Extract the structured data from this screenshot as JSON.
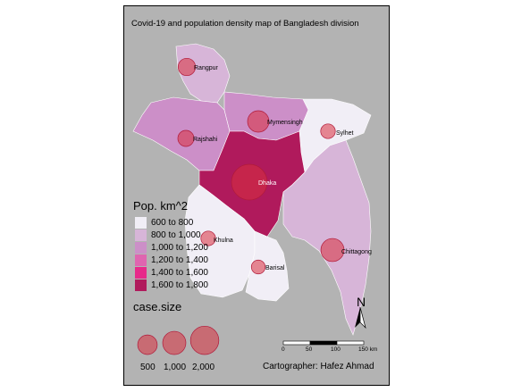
{
  "title": "Covid-19  and population density map of Bangladesh division",
  "legend": {
    "title": "Pop. km^2",
    "classes": [
      {
        "label": "600 to 800",
        "color": "#f1eef6"
      },
      {
        "label": "800 to 1,000",
        "color": "#d7b5d8"
      },
      {
        "label": "1,000 to 1,200",
        "color": "#cc8fc8"
      },
      {
        "label": "1,200 to 1,400",
        "color": "#df65b0"
      },
      {
        "label": "1,400 to 1,600",
        "color": "#e7298a"
      },
      {
        "label": "1,600 to 1,800",
        "color": "#b01a5c"
      }
    ]
  },
  "size_legend": {
    "title": "case.size",
    "values": [
      500,
      1000,
      2000
    ],
    "labels": [
      "500",
      "1,000",
      "2,000"
    ]
  },
  "divisions": [
    {
      "name": "Rangpur",
      "class": 1,
      "cases": 500
    },
    {
      "name": "Rajshahi",
      "class": 2,
      "cases": 400
    },
    {
      "name": "Mymensingh",
      "class": 2,
      "cases": 900
    },
    {
      "name": "Sylhet",
      "class": 0,
      "cases": 300
    },
    {
      "name": "Dhaka",
      "class": 5,
      "cases": 3200
    },
    {
      "name": "Khulna",
      "class": 0,
      "cases": 300
    },
    {
      "name": "Barisal",
      "class": 0,
      "cases": 250
    },
    {
      "name": "Chittagong",
      "class": 1,
      "cases": 1100
    }
  ],
  "scale_bar": {
    "ticks": [
      "0",
      "50",
      "100",
      "150 km"
    ]
  },
  "north_label": "N",
  "cartographer": "Cartographer: Hafez Ahmad",
  "bubble_color": "#d9303e"
}
